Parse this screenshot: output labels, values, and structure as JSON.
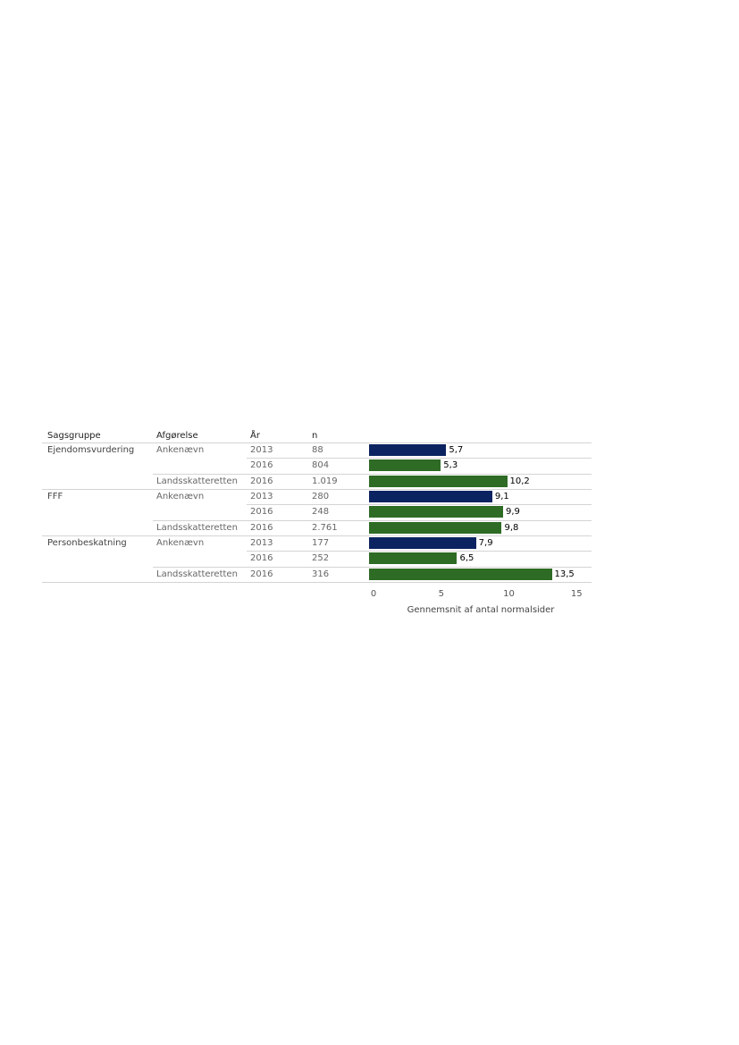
{
  "table_headers": {
    "group": "Sagsgruppe",
    "decision": "Afgørelse",
    "year": "År",
    "n": "n"
  },
  "colors": {
    "Ankenævn": "#0b2360",
    "Landsskatteretten": "#2e6b25"
  },
  "chart_data": {
    "type": "bar",
    "orientation": "horizontal",
    "xlabel": "Gennemsnit af antal normalsider",
    "xlim": [
      0,
      16.5
    ],
    "xticks": [
      0,
      5,
      10,
      15
    ],
    "grid": false,
    "legend": "none",
    "rows": [
      {
        "group": "Ejendomsvurdering",
        "decision": "Ankenævn",
        "year": "2013",
        "n": "88",
        "value": 5.7,
        "label": "5,7",
        "color_key": "Ankenævn"
      },
      {
        "group": "",
        "decision": "",
        "year": "2016",
        "n": "804",
        "value": 5.3,
        "label": "5,3",
        "color_key": "Landsskatteretten"
      },
      {
        "group": "",
        "decision": "Landsskatteretten",
        "year": "2016",
        "n": "1.019",
        "value": 10.2,
        "label": "10,2",
        "color_key": "Landsskatteretten"
      },
      {
        "group": "FFF",
        "decision": "Ankenævn",
        "year": "2013",
        "n": "280",
        "value": 9.1,
        "label": "9,1",
        "color_key": "Ankenævn"
      },
      {
        "group": "",
        "decision": "",
        "year": "2016",
        "n": "248",
        "value": 9.9,
        "label": "9,9",
        "color_key": "Landsskatteretten"
      },
      {
        "group": "",
        "decision": "Landsskatteretten",
        "year": "2016",
        "n": "2.761",
        "value": 9.8,
        "label": "9,8",
        "color_key": "Landsskatteretten"
      },
      {
        "group": "Personbeskatning",
        "decision": "Ankenævn",
        "year": "2013",
        "n": "177",
        "value": 7.9,
        "label": "7,9",
        "color_key": "Ankenævn"
      },
      {
        "group": "",
        "decision": "",
        "year": "2016",
        "n": "252",
        "value": 6.5,
        "label": "6,5",
        "color_key": "Landsskatteretten"
      },
      {
        "group": "",
        "decision": "Landsskatteretten",
        "year": "2016",
        "n": "316",
        "value": 13.5,
        "label": "13,5",
        "color_key": "Landsskatteretten"
      }
    ]
  }
}
